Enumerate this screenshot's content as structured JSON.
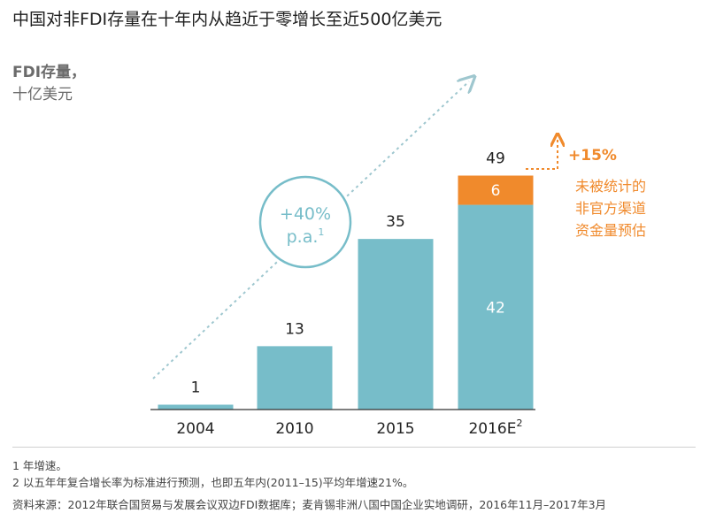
{
  "title": "中国对非FDI存量在十年内从趋近于零增长至近500亿美元",
  "unit_line1": "FDI存量，",
  "unit_line2": "十亿美元",
  "growth_circle": {
    "line1": "+40%",
    "line2": "p.a.",
    "sup": "1"
  },
  "uplift": {
    "label": "+15%",
    "note": [
      "未被统计的",
      "非官方渠道",
      "资金量预估"
    ]
  },
  "footnotes": [
    "1 年增速。",
    "2 以五年年复合增长率为标准进行预测，也即五年内(2011–15)平均年增速21%。"
  ],
  "source": "资料来源：2012年联合国贸易与发展会议双边FDI数据库；麦肯锡非洲八国中国企业实地调研，2016年11月–2017年3月",
  "colors": {
    "bar": "#77bdc9",
    "orange": "#f08a2c",
    "arrow": "#9fc7cf",
    "axis": "#333333"
  },
  "chart_data": {
    "type": "bar",
    "categories": [
      "2004",
      "2010",
      "2015",
      "2016E"
    ],
    "category_superscripts": [
      "",
      "",
      "",
      "2"
    ],
    "series": [
      {
        "values": [
          1,
          13,
          35,
          42
        ]
      },
      {
        "values": [
          null,
          null,
          null,
          6
        ]
      }
    ],
    "totals": [
      1,
      13,
      35,
      49
    ],
    "ylim": [
      0,
      50
    ],
    "grid": false
  }
}
